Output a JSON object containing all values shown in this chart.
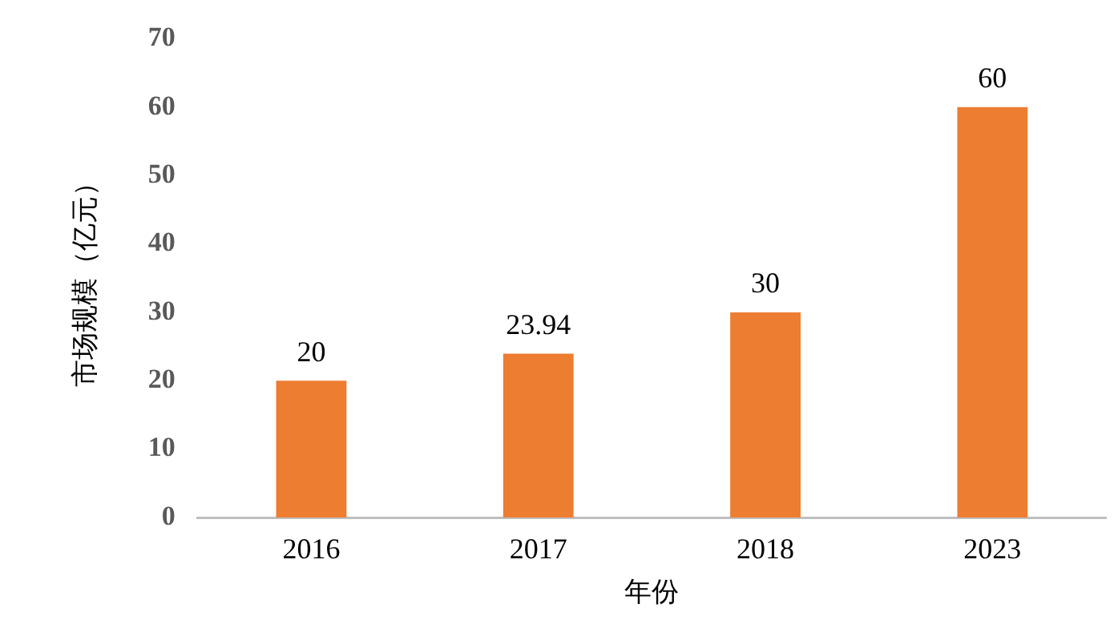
{
  "chart_data": {
    "type": "bar",
    "xlabel": "年份",
    "ylabel": "市场规模（亿元）",
    "categories": [
      "2016",
      "2017",
      "2018",
      "2023"
    ],
    "values": [
      20,
      23.94,
      30,
      60
    ],
    "color": "#ed7d31",
    "ylim": [
      0,
      70
    ],
    "yticks": [
      0,
      10,
      20,
      30,
      40,
      50,
      60,
      70
    ],
    "grid": false,
    "data_labels": true
  }
}
